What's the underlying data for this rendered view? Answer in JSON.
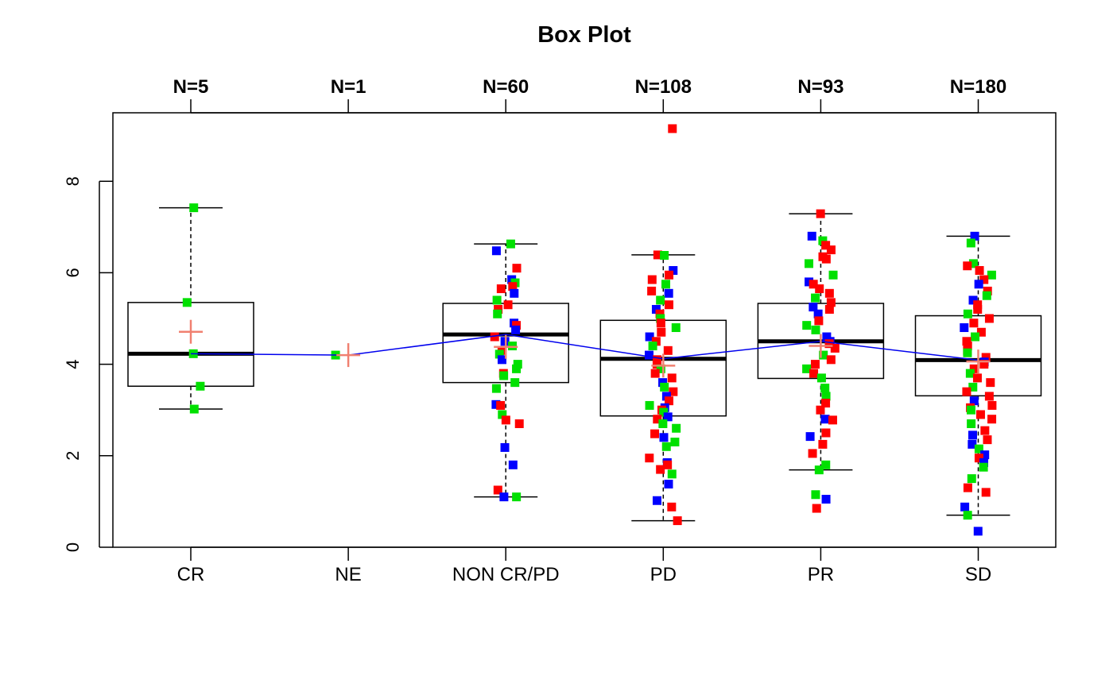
{
  "chart_data": {
    "type": "box",
    "title": "Box Plot",
    "xlabel": "",
    "ylabel": "",
    "ylim": [
      0,
      9.5
    ],
    "yticks": [
      0,
      2,
      4,
      6,
      8
    ],
    "grid": false,
    "categories": [
      "CR",
      "NE",
      "NON CR/PD",
      "PD",
      "PR",
      "SD"
    ],
    "counts": [
      "N=5",
      "N=1",
      "N=60",
      "N=108",
      "N=93",
      "N=180"
    ],
    "point_colors": [
      "#00e000",
      "#0000ff",
      "#ff0000"
    ],
    "colors": {
      "box": "#000000",
      "median_line": "#0000ee",
      "mean_marker": "#f08070"
    },
    "boxes": [
      {
        "category": "CR",
        "whisker_low": 3.02,
        "q1": 3.52,
        "median": 4.23,
        "q3": 5.35,
        "whisker_high": 7.42,
        "mean": 4.71
      },
      {
        "category": "NE",
        "whisker_low": 4.2,
        "q1": 4.2,
        "median": 4.2,
        "q3": 4.2,
        "whisker_high": 4.2,
        "mean": 4.2
      },
      {
        "category": "NON CR/PD",
        "whisker_low": 1.1,
        "q1": 3.6,
        "median": 4.65,
        "q3": 5.33,
        "whisker_high": 6.63,
        "mean": 4.38
      },
      {
        "category": "PD",
        "whisker_low": 0.58,
        "q1": 2.87,
        "median": 4.12,
        "q3": 4.96,
        "whisker_high": 6.39,
        "mean": 3.97
      },
      {
        "category": "PR",
        "whisker_low": 1.69,
        "q1": 3.69,
        "median": 4.5,
        "q3": 5.33,
        "whisker_high": 7.29,
        "mean": 4.4
      },
      {
        "category": "SD",
        "whisker_low": 0.7,
        "q1": 3.31,
        "median": 4.09,
        "q3": 5.06,
        "whisker_high": 6.8,
        "mean": 4.06
      }
    ],
    "points": {
      "CR": [
        [
          7.42,
          0
        ],
        [
          5.35,
          0
        ],
        [
          4.23,
          0
        ],
        [
          3.52,
          0
        ],
        [
          3.02,
          0
        ]
      ],
      "NE": [
        [
          4.2,
          0
        ]
      ],
      "NON CR/PD": [
        [
          6.63,
          0
        ],
        [
          6.48,
          1
        ],
        [
          6.1,
          2
        ],
        [
          5.85,
          1
        ],
        [
          5.78,
          0
        ],
        [
          5.7,
          2
        ],
        [
          5.65,
          2
        ],
        [
          5.55,
          1
        ],
        [
          5.4,
          0
        ],
        [
          5.3,
          2
        ],
        [
          5.2,
          2
        ],
        [
          5.1,
          0
        ],
        [
          4.9,
          1
        ],
        [
          4.85,
          2
        ],
        [
          4.75,
          1
        ],
        [
          4.6,
          2
        ],
        [
          4.5,
          1
        ],
        [
          4.4,
          0
        ],
        [
          4.3,
          2
        ],
        [
          4.22,
          0
        ],
        [
          4.1,
          1
        ],
        [
          4.0,
          0
        ],
        [
          3.9,
          0
        ],
        [
          3.8,
          2
        ],
        [
          3.75,
          0
        ],
        [
          3.6,
          0
        ],
        [
          3.47,
          0
        ],
        [
          3.12,
          1
        ],
        [
          3.1,
          2
        ],
        [
          2.9,
          0
        ],
        [
          2.78,
          2
        ],
        [
          2.7,
          2
        ],
        [
          2.18,
          1
        ],
        [
          1.8,
          1
        ],
        [
          1.25,
          2
        ],
        [
          1.1,
          1
        ],
        [
          1.1,
          0
        ]
      ],
      "PD": [
        [
          9.15,
          2
        ],
        [
          6.39,
          2
        ],
        [
          6.38,
          0
        ],
        [
          6.05,
          1
        ],
        [
          5.95,
          2
        ],
        [
          5.85,
          2
        ],
        [
          5.75,
          0
        ],
        [
          5.6,
          2
        ],
        [
          5.55,
          1
        ],
        [
          5.4,
          0
        ],
        [
          5.3,
          2
        ],
        [
          5.2,
          1
        ],
        [
          5.1,
          2
        ],
        [
          5.0,
          0
        ],
        [
          4.9,
          2
        ],
        [
          4.8,
          0
        ],
        [
          4.7,
          2
        ],
        [
          4.6,
          1
        ],
        [
          4.5,
          2
        ],
        [
          4.4,
          0
        ],
        [
          4.3,
          2
        ],
        [
          4.2,
          1
        ],
        [
          4.1,
          2
        ],
        [
          4.0,
          2
        ],
        [
          3.9,
          0
        ],
        [
          3.8,
          2
        ],
        [
          3.7,
          2
        ],
        [
          3.6,
          1
        ],
        [
          3.5,
          0
        ],
        [
          3.4,
          2
        ],
        [
          3.3,
          1
        ],
        [
          3.2,
          2
        ],
        [
          3.1,
          0
        ],
        [
          3.05,
          1
        ],
        [
          3.0,
          2
        ],
        [
          2.95,
          0
        ],
        [
          2.85,
          1
        ],
        [
          2.8,
          2
        ],
        [
          2.7,
          0
        ],
        [
          2.6,
          0
        ],
        [
          2.48,
          2
        ],
        [
          2.4,
          1
        ],
        [
          2.3,
          0
        ],
        [
          2.2,
          0
        ],
        [
          1.95,
          2
        ],
        [
          1.85,
          1
        ],
        [
          1.8,
          2
        ],
        [
          1.7,
          2
        ],
        [
          1.6,
          0
        ],
        [
          1.38,
          1
        ],
        [
          1.02,
          1
        ],
        [
          0.88,
          2
        ],
        [
          0.58,
          2
        ]
      ],
      "PR": [
        [
          7.29,
          2
        ],
        [
          6.8,
          1
        ],
        [
          6.7,
          0
        ],
        [
          6.6,
          2
        ],
        [
          6.5,
          2
        ],
        [
          6.35,
          2
        ],
        [
          6.3,
          2
        ],
        [
          6.2,
          0
        ],
        [
          5.95,
          0
        ],
        [
          5.8,
          1
        ],
        [
          5.75,
          2
        ],
        [
          5.65,
          2
        ],
        [
          5.55,
          2
        ],
        [
          5.45,
          0
        ],
        [
          5.35,
          2
        ],
        [
          5.25,
          1
        ],
        [
          5.2,
          2
        ],
        [
          5.1,
          1
        ],
        [
          4.95,
          2
        ],
        [
          4.85,
          0
        ],
        [
          4.75,
          0
        ],
        [
          4.6,
          1
        ],
        [
          4.5,
          1
        ],
        [
          4.45,
          2
        ],
        [
          4.35,
          2
        ],
        [
          4.2,
          0
        ],
        [
          4.1,
          2
        ],
        [
          4.0,
          2
        ],
        [
          3.9,
          0
        ],
        [
          3.8,
          2
        ],
        [
          3.7,
          0
        ],
        [
          3.48,
          0
        ],
        [
          3.3,
          0
        ],
        [
          3.15,
          2
        ],
        [
          3.0,
          2
        ],
        [
          2.8,
          1
        ],
        [
          2.78,
          2
        ],
        [
          2.5,
          2
        ],
        [
          2.42,
          1
        ],
        [
          2.25,
          2
        ],
        [
          2.05,
          2
        ],
        [
          1.8,
          0
        ],
        [
          1.69,
          0
        ],
        [
          1.15,
          0
        ],
        [
          1.05,
          1
        ],
        [
          0.85,
          2
        ]
      ],
      "SD": [
        [
          6.8,
          1
        ],
        [
          6.65,
          0
        ],
        [
          6.2,
          0
        ],
        [
          6.15,
          2
        ],
        [
          6.05,
          2
        ],
        [
          5.95,
          0
        ],
        [
          5.85,
          2
        ],
        [
          5.75,
          1
        ],
        [
          5.6,
          2
        ],
        [
          5.5,
          0
        ],
        [
          5.4,
          1
        ],
        [
          5.3,
          2
        ],
        [
          5.2,
          2
        ],
        [
          5.1,
          0
        ],
        [
          5.0,
          2
        ],
        [
          4.9,
          2
        ],
        [
          4.8,
          1
        ],
        [
          4.7,
          2
        ],
        [
          4.6,
          0
        ],
        [
          4.5,
          2
        ],
        [
          4.4,
          2
        ],
        [
          4.3,
          2
        ],
        [
          4.25,
          0
        ],
        [
          4.15,
          2
        ],
        [
          4.05,
          1
        ],
        [
          4.0,
          2
        ],
        [
          3.9,
          2
        ],
        [
          3.8,
          0
        ],
        [
          3.7,
          2
        ],
        [
          3.6,
          2
        ],
        [
          3.5,
          0
        ],
        [
          3.4,
          2
        ],
        [
          3.3,
          2
        ],
        [
          3.2,
          1
        ],
        [
          3.1,
          2
        ],
        [
          3.05,
          2
        ],
        [
          3.0,
          0
        ],
        [
          2.9,
          2
        ],
        [
          2.8,
          2
        ],
        [
          2.7,
          0
        ],
        [
          2.55,
          2
        ],
        [
          2.45,
          1
        ],
        [
          2.35,
          2
        ],
        [
          2.25,
          1
        ],
        [
          2.15,
          0
        ],
        [
          2.02,
          1
        ],
        [
          1.95,
          2
        ],
        [
          1.85,
          1
        ],
        [
          1.75,
          0
        ],
        [
          1.5,
          0
        ],
        [
          1.3,
          2
        ],
        [
          1.2,
          2
        ],
        [
          0.88,
          1
        ],
        [
          0.7,
          0
        ],
        [
          0.35,
          1
        ]
      ]
    }
  }
}
